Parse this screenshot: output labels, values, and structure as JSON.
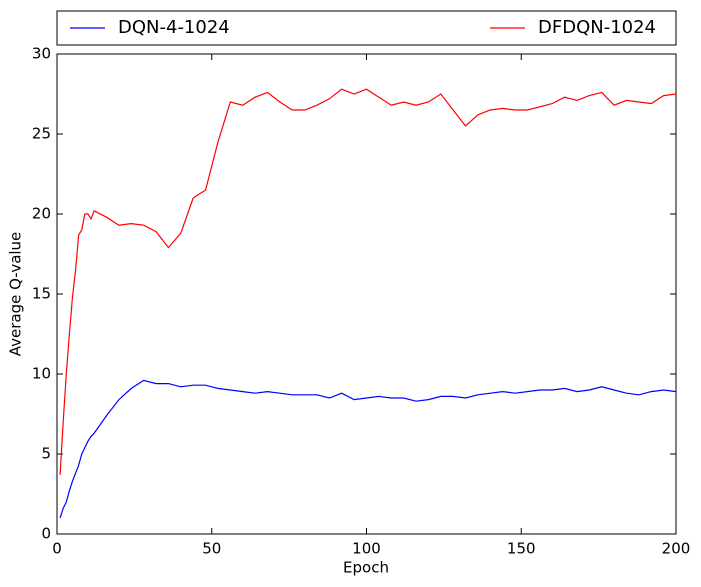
{
  "chart_data": {
    "type": "line",
    "xlabel": "Epoch",
    "ylabel": "Average Q-value",
    "x": [
      1,
      2,
      3,
      4,
      5,
      6,
      7,
      8,
      9,
      10,
      11,
      12,
      16,
      20,
      24,
      28,
      32,
      36,
      40,
      44,
      48,
      52,
      56,
      60,
      64,
      68,
      72,
      76,
      80,
      84,
      88,
      92,
      96,
      100,
      104,
      108,
      112,
      116,
      120,
      124,
      128,
      132,
      136,
      140,
      144,
      148,
      152,
      156,
      160,
      164,
      168,
      172,
      176,
      180,
      184,
      188,
      192,
      196,
      200
    ],
    "series": [
      {
        "name": "DQN-4-1024",
        "color": "#0000ff",
        "values": [
          1.0,
          1.6,
          2.0,
          2.7,
          3.3,
          3.8,
          4.3,
          5.0,
          5.4,
          5.8,
          6.1,
          6.3,
          7.4,
          8.4,
          9.1,
          9.6,
          9.4,
          9.4,
          9.2,
          9.3,
          9.3,
          9.1,
          9.0,
          8.9,
          8.8,
          8.9,
          8.8,
          8.7,
          8.7,
          8.7,
          8.5,
          8.8,
          8.4,
          8.5,
          8.6,
          8.5,
          8.5,
          8.3,
          8.4,
          8.6,
          8.6,
          8.5,
          8.7,
          8.8,
          8.9,
          8.8,
          8.9,
          9.0,
          9.0,
          9.1,
          8.9,
          9.0,
          9.2,
          9.0,
          8.8,
          8.7,
          8.9,
          9.0,
          8.9
        ]
      },
      {
        "name": "DFDQN-1024",
        "color": "#ff0000",
        "values": [
          3.7,
          7.0,
          10.0,
          12.5,
          14.8,
          16.5,
          18.7,
          19.0,
          20.0,
          20.0,
          19.7,
          20.2,
          19.8,
          19.3,
          19.4,
          19.3,
          18.9,
          17.9,
          18.8,
          21.0,
          21.5,
          24.5,
          27.0,
          26.8,
          27.3,
          27.6,
          27.0,
          26.5,
          26.5,
          26.8,
          27.2,
          27.8,
          27.5,
          27.8,
          27.3,
          26.8,
          27.0,
          26.8,
          27.0,
          27.5,
          26.5,
          25.5,
          26.2,
          26.5,
          26.6,
          26.5,
          26.5,
          26.7,
          26.9,
          27.3,
          27.1,
          27.4,
          27.6,
          26.8,
          27.1,
          27.0,
          26.9,
          27.4,
          27.5
        ]
      }
    ],
    "xlim": [
      0,
      200
    ],
    "xticks": [
      0,
      50,
      100,
      150,
      200
    ],
    "ylim": [
      0,
      30
    ],
    "yticks": [
      0,
      5,
      10,
      15,
      20,
      25,
      30
    ],
    "legend": "top"
  }
}
